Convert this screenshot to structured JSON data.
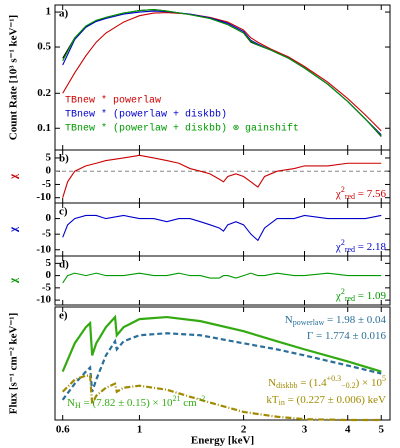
{
  "chart_data": [
    {
      "type": "line",
      "panel_label": "a)",
      "ylabel": "Count Rate [10³ s⁻¹ keV⁻¹]",
      "ylog": true,
      "xlim": [
        0.57,
        5.3
      ],
      "ylim": [
        0.065,
        1.15
      ],
      "yticks": [
        1,
        0.5,
        0.2,
        0.1
      ],
      "legend": "lower left",
      "x": [
        0.6,
        0.65,
        0.7,
        0.75,
        0.8,
        0.9,
        1.0,
        1.1,
        1.2,
        1.4,
        1.6,
        1.8,
        2.0,
        2.1,
        2.2,
        2.4,
        2.7,
        3.0,
        3.5,
        4.0,
        4.5,
        5.0
      ],
      "series": [
        {
          "color": "#000000",
          "values": [
            0.4,
            0.6,
            0.75,
            0.84,
            0.9,
            0.98,
            1.03,
            1.05,
            1.02,
            0.95,
            0.88,
            0.78,
            0.66,
            0.55,
            0.52,
            0.47,
            0.4,
            0.33,
            0.24,
            0.17,
            0.12,
            0.085
          ]
        },
        {
          "name": "TBnew * powerlaw",
          "color": "#cc0000",
          "values": [
            0.2,
            0.3,
            0.42,
            0.55,
            0.66,
            0.82,
            0.93,
            0.98,
            0.99,
            0.96,
            0.9,
            0.82,
            0.7,
            0.6,
            0.55,
            0.48,
            0.41,
            0.34,
            0.25,
            0.18,
            0.13,
            0.095
          ]
        },
        {
          "name": "TBnew * (powerlaw + diskbb)",
          "color": "#0000cc",
          "values": [
            0.35,
            0.58,
            0.74,
            0.83,
            0.88,
            0.96,
            1.0,
            1.02,
            1.01,
            0.96,
            0.89,
            0.8,
            0.68,
            0.57,
            0.53,
            0.47,
            0.4,
            0.33,
            0.24,
            0.17,
            0.12,
            0.088
          ]
        },
        {
          "name": "TBnew * (powerlaw + diskbb) ⊗ gainshift",
          "color": "#009900",
          "values": [
            0.38,
            0.6,
            0.76,
            0.85,
            0.9,
            0.98,
            1.03,
            1.05,
            1.02,
            0.95,
            0.88,
            0.78,
            0.66,
            0.56,
            0.52,
            0.47,
            0.4,
            0.33,
            0.24,
            0.17,
            0.12,
            0.086
          ]
        }
      ]
    },
    {
      "type": "line",
      "panel_label": "b)",
      "ylabel": "χ",
      "ylabel_color": "#cc0000",
      "reference_line": 0,
      "xlim": [
        0.57,
        5.3
      ],
      "ylim": [
        -12,
        8
      ],
      "yticks": [
        5,
        0,
        -5,
        -10
      ],
      "x": [
        0.6,
        0.62,
        0.65,
        0.7,
        0.75,
        0.8,
        0.9,
        1.0,
        1.1,
        1.2,
        1.3,
        1.4,
        1.5,
        1.6,
        1.7,
        1.75,
        1.8,
        1.9,
        2.0,
        2.1,
        2.2,
        2.3,
        2.5,
        2.8,
        3.0,
        3.5,
        4.0,
        4.5,
        5.0
      ],
      "series": [
        {
          "color": "#cc0000",
          "values": [
            -10,
            -4,
            0,
            2,
            3,
            4,
            5,
            6,
            5,
            4,
            3,
            1,
            0,
            -1,
            -3,
            -4,
            -2,
            -1,
            -2,
            -4,
            -6,
            -2,
            0,
            1,
            2,
            2,
            3,
            3,
            3
          ]
        }
      ],
      "annotations": [
        {
          "color": "#cc0000",
          "segments": [
            {
              "text": "χ"
            },
            {
              "text": "2",
              "pos": "sup"
            },
            {
              "text": "red",
              "pos": "sub"
            },
            {
              "text": " = 7.56"
            }
          ]
        }
      ]
    },
    {
      "type": "line",
      "panel_label": "c)",
      "ylabel": "χ",
      "ylabel_color": "#0000cc",
      "xlim": [
        0.57,
        5.3
      ],
      "ylim": [
        -12,
        5
      ],
      "yticks": [
        0,
        -5,
        -10
      ],
      "x": [
        0.6,
        0.62,
        0.65,
        0.7,
        0.75,
        0.8,
        0.9,
        1.0,
        1.1,
        1.2,
        1.3,
        1.4,
        1.5,
        1.6,
        1.7,
        1.75,
        1.8,
        1.9,
        2.0,
        2.1,
        2.2,
        2.3,
        2.5,
        2.8,
        3.0,
        3.5,
        4.0,
        4.5,
        5.0
      ],
      "series": [
        {
          "color": "#0000cc",
          "values": [
            -6,
            -2,
            0,
            1,
            1,
            0,
            1,
            0,
            0,
            -1,
            0,
            0,
            -1,
            -2,
            -3,
            -4,
            -2,
            -1,
            -2,
            -5,
            -7,
            -3,
            0,
            0,
            1,
            0,
            0,
            0,
            1
          ]
        }
      ],
      "annotations": [
        {
          "color": "#0000cc",
          "segments": [
            {
              "text": "χ"
            },
            {
              "text": "2",
              "pos": "sup"
            },
            {
              "text": "red",
              "pos": "sub"
            },
            {
              "text": " = 2.18"
            }
          ]
        }
      ]
    },
    {
      "type": "line",
      "panel_label": "d)",
      "ylabel": "χ",
      "ylabel_color": "#009900",
      "xlim": [
        0.57,
        5.3
      ],
      "ylim": [
        -12,
        8
      ],
      "yticks": [
        5,
        0,
        -5,
        -10
      ],
      "x": [
        0.6,
        0.62,
        0.65,
        0.7,
        0.75,
        0.8,
        0.9,
        1.0,
        1.1,
        1.2,
        1.3,
        1.4,
        1.5,
        1.6,
        1.7,
        1.75,
        1.8,
        1.9,
        2.0,
        2.1,
        2.2,
        2.3,
        2.5,
        2.8,
        3.0,
        3.5,
        4.0,
        4.5,
        5.0
      ],
      "series": [
        {
          "color": "#009900",
          "values": [
            -3,
            0,
            1,
            0,
            1,
            0,
            0,
            1,
            0,
            0,
            1,
            0,
            0,
            -1,
            -1,
            0,
            0,
            -1,
            0,
            1,
            0,
            0,
            1,
            0,
            0,
            1,
            0,
            0,
            0
          ]
        }
      ],
      "annotations": [
        {
          "color": "#009900",
          "segments": [
            {
              "text": "χ"
            },
            {
              "text": "2",
              "pos": "sup"
            },
            {
              "text": "red",
              "pos": "sub"
            },
            {
              "text": " = 1.09"
            }
          ]
        }
      ]
    },
    {
      "type": "line",
      "panel_label": "e)",
      "ylabel": "Flux [s⁻¹ cm⁻² keV⁻¹]",
      "xlabel": "Energy [keV]",
      "xlim": [
        0.57,
        5.3
      ],
      "ylim": [
        0,
        2.8
      ],
      "xticks": [
        0.6,
        1,
        2,
        3,
        4,
        5
      ],
      "x": [
        0.6,
        0.65,
        0.7,
        0.72,
        0.73,
        0.75,
        0.8,
        0.85,
        0.86,
        0.9,
        1.0,
        1.2,
        1.5,
        2.0,
        2.5,
        3.0,
        4.0,
        5.0
      ],
      "series": [
        {
          "color": "#33aa11",
          "dash": "solid",
          "values": [
            1.2,
            1.9,
            2.3,
            2.4,
            1.6,
            1.9,
            2.3,
            2.55,
            2.1,
            2.3,
            2.5,
            2.55,
            2.45,
            2.2,
            1.95,
            1.75,
            1.45,
            1.2
          ]
        },
        {
          "color": "#2a6f9a",
          "dash": "dashed",
          "values": [
            0.5,
            0.9,
            1.2,
            1.3,
            0.7,
            1.0,
            1.6,
            1.95,
            1.75,
            1.95,
            2.1,
            2.15,
            2.1,
            1.9,
            1.75,
            1.6,
            1.35,
            1.15
          ]
        },
        {
          "color": "#a08a00",
          "dash": "dashdot",
          "values": [
            0.7,
            1.0,
            1.1,
            1.1,
            0.4,
            0.6,
            0.8,
            0.9,
            0.7,
            0.8,
            0.85,
            0.75,
            0.5,
            0.2,
            0.08,
            0.02,
            0,
            0
          ]
        }
      ],
      "annotations": [
        {
          "color": "#2a6f9a",
          "segments": [
            {
              "text": "N"
            },
            {
              "text": "powerlaw",
              "pos": "sub"
            },
            {
              "text": " = 1.98 ± 0.04"
            }
          ]
        },
        {
          "color": "#2a6f9a",
          "segments": [
            {
              "text": "Γ = 1.774 ± 0.016"
            }
          ]
        },
        {
          "color": "#a08a00",
          "segments": [
            {
              "text": "N"
            },
            {
              "text": "diskbb",
              "pos": "sub"
            },
            {
              "text": " = (1.4"
            },
            {
              "text": "+0.3",
              "pos": "sup"
            },
            {
              "text": "−0.2",
              "pos": "sub"
            },
            {
              "text": ") × 10"
            },
            {
              "text": "5",
              "pos": "sup"
            }
          ]
        },
        {
          "color": "#a08a00",
          "segments": [
            {
              "text": "kT"
            },
            {
              "text": "in",
              "pos": "sub"
            },
            {
              "text": " = (0.227 ± 0.006) keV"
            }
          ]
        },
        {
          "color": "#33aa11",
          "segments": [
            {
              "text": "N"
            },
            {
              "text": "H",
              "pos": "sub"
            },
            {
              "text": " = (7.82 ± 0.15) × 10"
            },
            {
              "text": "21",
              "pos": "sup"
            },
            {
              "text": " cm"
            },
            {
              "text": "−2",
              "pos": "sup"
            }
          ]
        }
      ]
    }
  ]
}
